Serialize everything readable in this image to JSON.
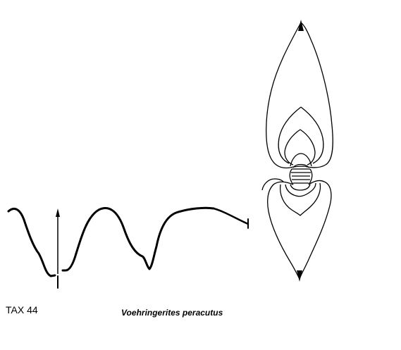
{
  "figure": {
    "tax_label": "TAX 44",
    "species_name": "Voehringerites peracutus",
    "line_color": "#000000",
    "background_color": "#ffffff"
  }
}
